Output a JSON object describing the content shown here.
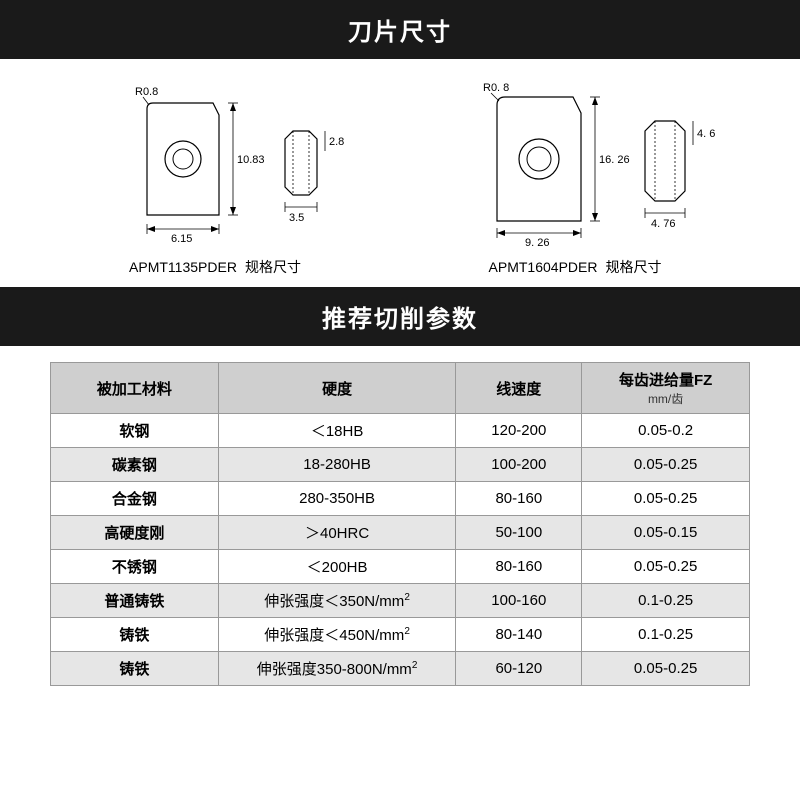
{
  "banner1": "刀片尺寸",
  "banner2": "推荐切削参数",
  "diagrams": [
    {
      "model": "APMT1135PDER",
      "suffix": "规格尺寸",
      "radius_label": "R0.8",
      "width": "6.15",
      "height": "10.83",
      "side_h": "2.8",
      "side_w": "3.5"
    },
    {
      "model": "APMT1604PDER",
      "suffix": "规格尺寸",
      "radius_label": "R0. 8",
      "width": "9. 26",
      "height": "16. 26",
      "side_h": "4. 6",
      "side_w": "4. 76"
    }
  ],
  "table": {
    "headers": {
      "c0": "被加工材料",
      "c1": "硬度",
      "c2": "线速度",
      "c3": "每齿进给量FZ",
      "c3_sub": "mm/齿"
    },
    "rows": [
      {
        "material": "软钢",
        "hardness": "＜18HB",
        "speed": "120-200",
        "feed": "0.05-0.2"
      },
      {
        "material": "碳素钢",
        "hardness": "18-280HB",
        "speed": "100-200",
        "feed": "0.05-0.25"
      },
      {
        "material": "合金钢",
        "hardness": "280-350HB",
        "speed": "80-160",
        "feed": "0.05-0.25"
      },
      {
        "material": "高硬度刚",
        "hardness": "＞40HRC",
        "speed": "50-100",
        "feed": "0.05-0.15"
      },
      {
        "material": "不锈钢",
        "hardness": "＜200HB",
        "speed": "80-160",
        "feed": "0.05-0.25"
      },
      {
        "material": "普通铸铁",
        "hardness_html": "伸张强度＜350N/mm<span class='sup'>2</span>",
        "speed": "100-160",
        "feed": "0.1-0.25"
      },
      {
        "material": "铸铁",
        "hardness_html": "伸张强度＜450N/mm<span class='sup'>2</span>",
        "speed": "80-140",
        "feed": "0.1-0.25"
      },
      {
        "material": "铸铁",
        "hardness_html": "伸张强度350-800N/mm<span class='sup'>2</span>",
        "speed": "60-120",
        "feed": "0.05-0.25"
      }
    ],
    "col_widths": [
      "24%",
      "34%",
      "18%",
      "24%"
    ]
  },
  "colors": {
    "banner_bg": "#1a1a1a",
    "banner_fg": "#ffffff",
    "th_bg": "#cfcfcf",
    "row_even_bg": "#e6e6e6",
    "border": "#999999"
  }
}
